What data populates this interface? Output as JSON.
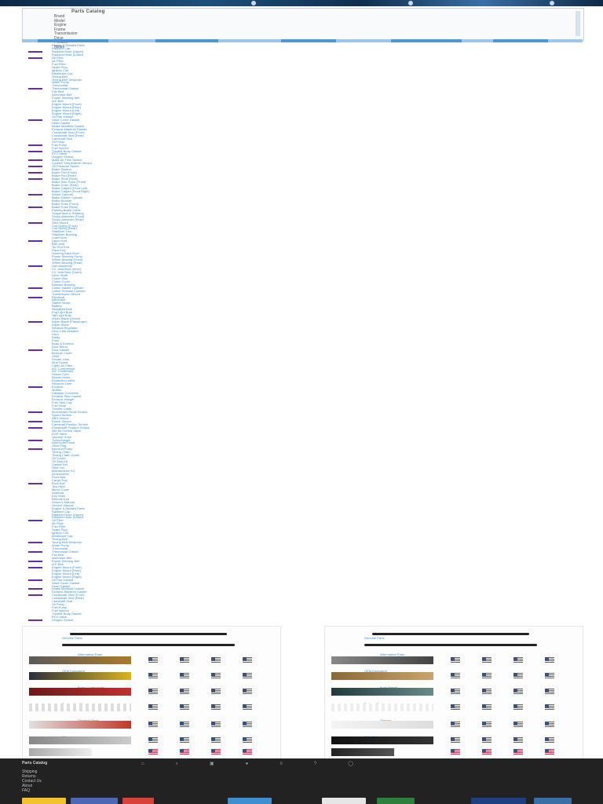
{
  "header": {
    "title": "Parts Catalog",
    "left_fields": [
      "Brand",
      "Model",
      "Engine",
      "Frame",
      "Transmission",
      "Drive",
      "Position",
      "Notes"
    ],
    "right_fields": [
      "",
      "",
      "",
      "",
      "",
      "",
      "",
      ""
    ]
  },
  "parts": [
    "Engine & Related Parts",
    "Radiator Cap",
    "Radiator Hose (Upper)",
    "Radiator Hose (Lower)",
    "Oil Filter",
    "Air Filter",
    "Fuel Filter",
    "Spark Plug",
    "Ignition Coil",
    "Distributor Cap",
    "Timing Belt",
    "Timing Belt Tensioner",
    "Water Pump",
    "Thermostat",
    "Thermostat Gasket",
    "Fan Belt",
    "Alternator Belt",
    "Power Steering Belt",
    "A/C Belt",
    "Engine Mount (Front)",
    "Engine Mount (Rear)",
    "Engine Mount (Left)",
    "Engine Mount (Right)",
    "Oil Pan Gasket",
    "Valve Cover Gasket",
    "Head Gasket",
    "Intake Manifold Gasket",
    "Exhaust Manifold Gasket",
    "Crankshaft Seal (Front)",
    "Crankshaft Seal (Rear)",
    "Camshaft Seal",
    "Oil Pump",
    "Fuel Pump",
    "Fuel Injector",
    "Throttle Body Gasket",
    "PCV Valve",
    "Oxygen Sensor",
    "Mass Air Flow Sensor",
    "Coolant Temperature Sensor",
    "Oil Pressure Switch",
    "Brake System",
    "Brake Pad (Front)",
    "Brake Pad (Rear)",
    "Brake Shoe (Rear)",
    "Brake Disc Rotor (Front)",
    "Brake Drum (Rear)",
    "Brake Caliper (Front Left)",
    "Brake Caliper (Front Right)",
    "Wheel Cylinder",
    "Brake Master Cylinder",
    "Brake Booster",
    "Brake Hose (Front)",
    "Brake Hose (Rear)",
    "Parking Brake Cable",
    "Suspension & Steering",
    "Shock Absorber (Front)",
    "Shock Absorber (Rear)",
    "Strut Mount",
    "Coil Spring (Front)",
    "Coil Spring (Rear)",
    "Stabilizer Link",
    "Stabilizer Bushing",
    "Lower Arm",
    "Upper Arm",
    "Ball Joint",
    "Tie Rod End",
    "Rack End",
    "Steering Rack Boot",
    "Power Steering Pump",
    "Wheel Bearing (Front)",
    "Wheel Bearing (Rear)",
    "Hub Assembly",
    "CV Joint Boot (Inner)",
    "CV Joint Boot (Outer)",
    "Drive Shaft",
    "Clutch Disc",
    "Clutch Cover",
    "Release Bearing",
    "Clutch Master Cylinder",
    "Clutch Release Cylinder",
    "Transmission Mount",
    "Electrical",
    "Alternator",
    "Starter Motor",
    "Battery",
    "Headlight Bulb",
    "Fog Light Bulb",
    "Tail Light Bulb",
    "Wiper Blade (Driver)",
    "Wiper Blade (Passenger)",
    "Wiper Motor",
    "Window Regulator",
    "Door Lock Actuator",
    "Horn",
    "Relay",
    "Fuse",
    "Body & Exterior",
    "Door Mirror",
    "Door Handle",
    "Bumper Cover",
    "Grille",
    "Fender Liner",
    "Mud Guard",
    "Cabin Air Filter",
    "A/C Compressor",
    "A/C Condenser",
    "Heater Core",
    "Blower Motor",
    "Expansion Valve",
    "Receiver Drier",
    "Exhaust",
    "Muffler",
    "Catalytic Converter",
    "Exhaust Pipe Gasket",
    "Exhaust Hanger",
    "Fuel Tank Cap",
    "Fuel Hose",
    "Throttle Cable",
    "Accelerator Pedal Sensor",
    "Speed Sensor",
    "ABS Sensor",
    "Knock Sensor",
    "Camshaft Position Sensor",
    "Crankshaft Position Sensor",
    "Idle Air Control Valve",
    "EGR Valve",
    "Vacuum Hose",
    "Turbocharger",
    "Intercooler Hose",
    "Glow Plug",
    "Injection Pump",
    "Timing Chain",
    "Timing Chain Guide",
    "Oil Cooler",
    "Oil Seal Kit",
    "Gasket Set",
    "Filter Set",
    "Maintenance Kit",
    "Accessories",
    "Floor Mat",
    "Cargo Tray",
    "Roof Rail",
    "Tow Hitch",
    "Mirror Cover",
    "Antenna",
    "Key Shell",
    "Remote Key",
    "Owner's Manual",
    "Service Manual"
  ],
  "marked_rows": [
    2,
    4,
    14,
    24,
    32,
    34,
    37,
    39,
    41,
    43,
    48,
    52,
    57,
    63,
    71,
    78,
    81,
    89,
    98,
    110,
    118,
    121,
    123,
    127,
    130,
    141,
    153,
    160,
    163,
    166,
    168,
    172,
    175,
    177,
    185
  ],
  "panels": {
    "left_captions": [
      "Genuine Parts",
      "Aftermarket Parts",
      "OEM Equivalent",
      "Brake Components",
      "Suspension Kit",
      "Electrical Parts",
      "Filters"
    ],
    "right_captions": [
      "Genuine Parts",
      "Aftermarket Parts",
      "OEM Equivalent",
      "Body Panels",
      "Exhaust System",
      "Sensors",
      "Belts & Hoses"
    ]
  },
  "footer": {
    "title": "Parts Catalog",
    "links": [
      "Shipping",
      "Returns",
      "Contact Us",
      "About",
      "FAQ"
    ],
    "nav_icons": [
      "home-icon",
      "search-icon",
      "cart-icon",
      "user-icon",
      "menu-icon",
      "help-icon",
      "globe-icon"
    ],
    "copyright": ""
  },
  "colors": {
    "link": "#3d8fd0",
    "marker": "#6a2ea0",
    "footer": "#222222",
    "accent": "#4d97d6"
  }
}
